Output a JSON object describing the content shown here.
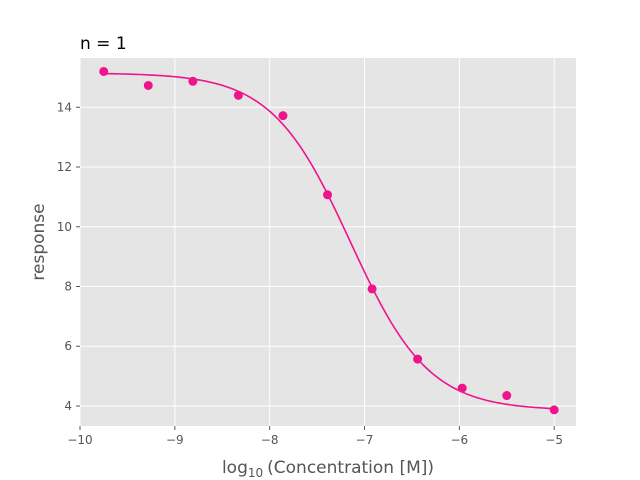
{
  "chart_data": {
    "type": "scatter",
    "title": "n = 1",
    "xlabel": {
      "prefix": "log",
      "subscript": "10",
      "suffix": "(Concentration [M])"
    },
    "ylabel": "response",
    "xlim": [
      -10,
      -4.77
    ],
    "ylim": [
      3.33,
      15.65
    ],
    "xticks": [
      -10,
      -9,
      -8,
      -7,
      -6,
      -5
    ],
    "xtick_labels": [
      "−10",
      "−9",
      "−8",
      "−7",
      "−6",
      "−5"
    ],
    "yticks": [
      4,
      6,
      8,
      10,
      12,
      14
    ],
    "ytick_labels": [
      "4",
      "6",
      "8",
      "10",
      "12",
      "14"
    ],
    "grid": true,
    "background": "#e5e5e5",
    "color": "#f0148c",
    "series": [
      {
        "kind": "points",
        "x": [
          -9.75,
          -9.28,
          -8.81,
          -8.33,
          -7.86,
          -7.39,
          -6.92,
          -6.44,
          -5.97,
          -5.5,
          -5.0
        ],
        "y": [
          15.2,
          14.73,
          14.87,
          14.4,
          13.72,
          11.07,
          7.92,
          5.57,
          4.6,
          4.35,
          3.87
        ]
      },
      {
        "kind": "fit",
        "model": "four-parameter logistic",
        "top": 15.15,
        "bottom": 3.85,
        "log_ic50": -7.15,
        "hill": 1.05,
        "x_range": [
          -9.75,
          -5.0
        ]
      }
    ]
  }
}
